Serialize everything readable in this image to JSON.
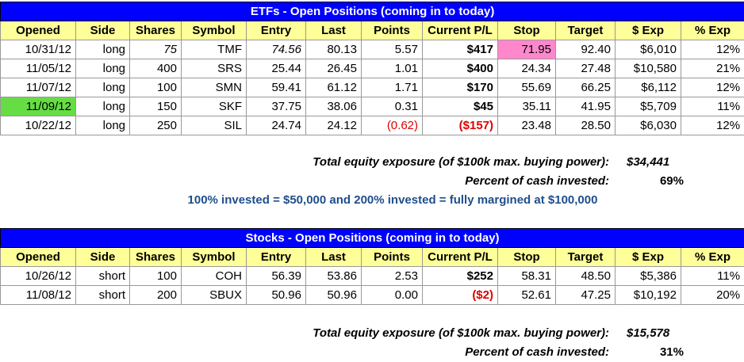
{
  "etf": {
    "title": "ETFs - Open Positions (coming in to today)",
    "columns": [
      "Opened",
      "Side",
      "Shares",
      "Symbol",
      "Entry",
      "Last",
      "Points",
      "Current P/L",
      "Stop",
      "Target",
      "$ Exp",
      "% Exp"
    ],
    "rows": [
      [
        "10/31/12",
        "long",
        "75",
        "TMF",
        "74.56",
        "80.13",
        "5.57",
        "$417",
        "71.95",
        "92.40",
        "$6,010",
        "12%"
      ],
      [
        "11/05/12",
        "long",
        "400",
        "SRS",
        "25.44",
        "26.45",
        "1.01",
        "$400",
        "24.34",
        "27.48",
        "$10,580",
        "21%"
      ],
      [
        "11/07/12",
        "long",
        "100",
        "SMN",
        "59.41",
        "61.12",
        "1.71",
        "$170",
        "55.69",
        "66.25",
        "$6,112",
        "12%"
      ],
      [
        "11/09/12",
        "long",
        "150",
        "SKF",
        "37.75",
        "38.06",
        "0.31",
        "$45",
        "35.11",
        "41.95",
        "$5,709",
        "11%"
      ],
      [
        "10/22/12",
        "long",
        "250",
        "SIL",
        "24.74",
        "24.12",
        "(0.62)",
        "($157)",
        "23.48",
        "28.50",
        "$6,030",
        "12%"
      ]
    ],
    "summary": [
      {
        "label": "Total equity exposure (of $100k max. buying power):",
        "value": "$34,441"
      },
      {
        "label": "Percent of cash invested:",
        "value": "69%"
      }
    ],
    "note": "100% invested = $50,000 and 200% invested = fully margined at $100,000"
  },
  "stocks": {
    "title": "Stocks - Open Positions (coming in to today)",
    "columns": [
      "Opened",
      "Side",
      "Shares",
      "Symbol",
      "Entry",
      "Last",
      "Points",
      "Current P/L",
      "Stop",
      "Target",
      "$ Exp",
      "% Exp"
    ],
    "rows": [
      [
        "10/26/12",
        "short",
        "100",
        "COH",
        "56.39",
        "53.86",
        "2.53",
        "$252",
        "58.31",
        "48.50",
        "$5,386",
        "11%"
      ],
      [
        "11/08/12",
        "short",
        "200",
        "SBUX",
        "50.96",
        "50.96",
        "0.00",
        "($2)",
        "52.61",
        "47.25",
        "$10,192",
        "20%"
      ]
    ],
    "summary": [
      {
        "label": "Total equity exposure (of $100k max. buying power):",
        "value": "$15,578"
      },
      {
        "label": "Percent of cash invested:",
        "value": "31%"
      }
    ]
  }
}
